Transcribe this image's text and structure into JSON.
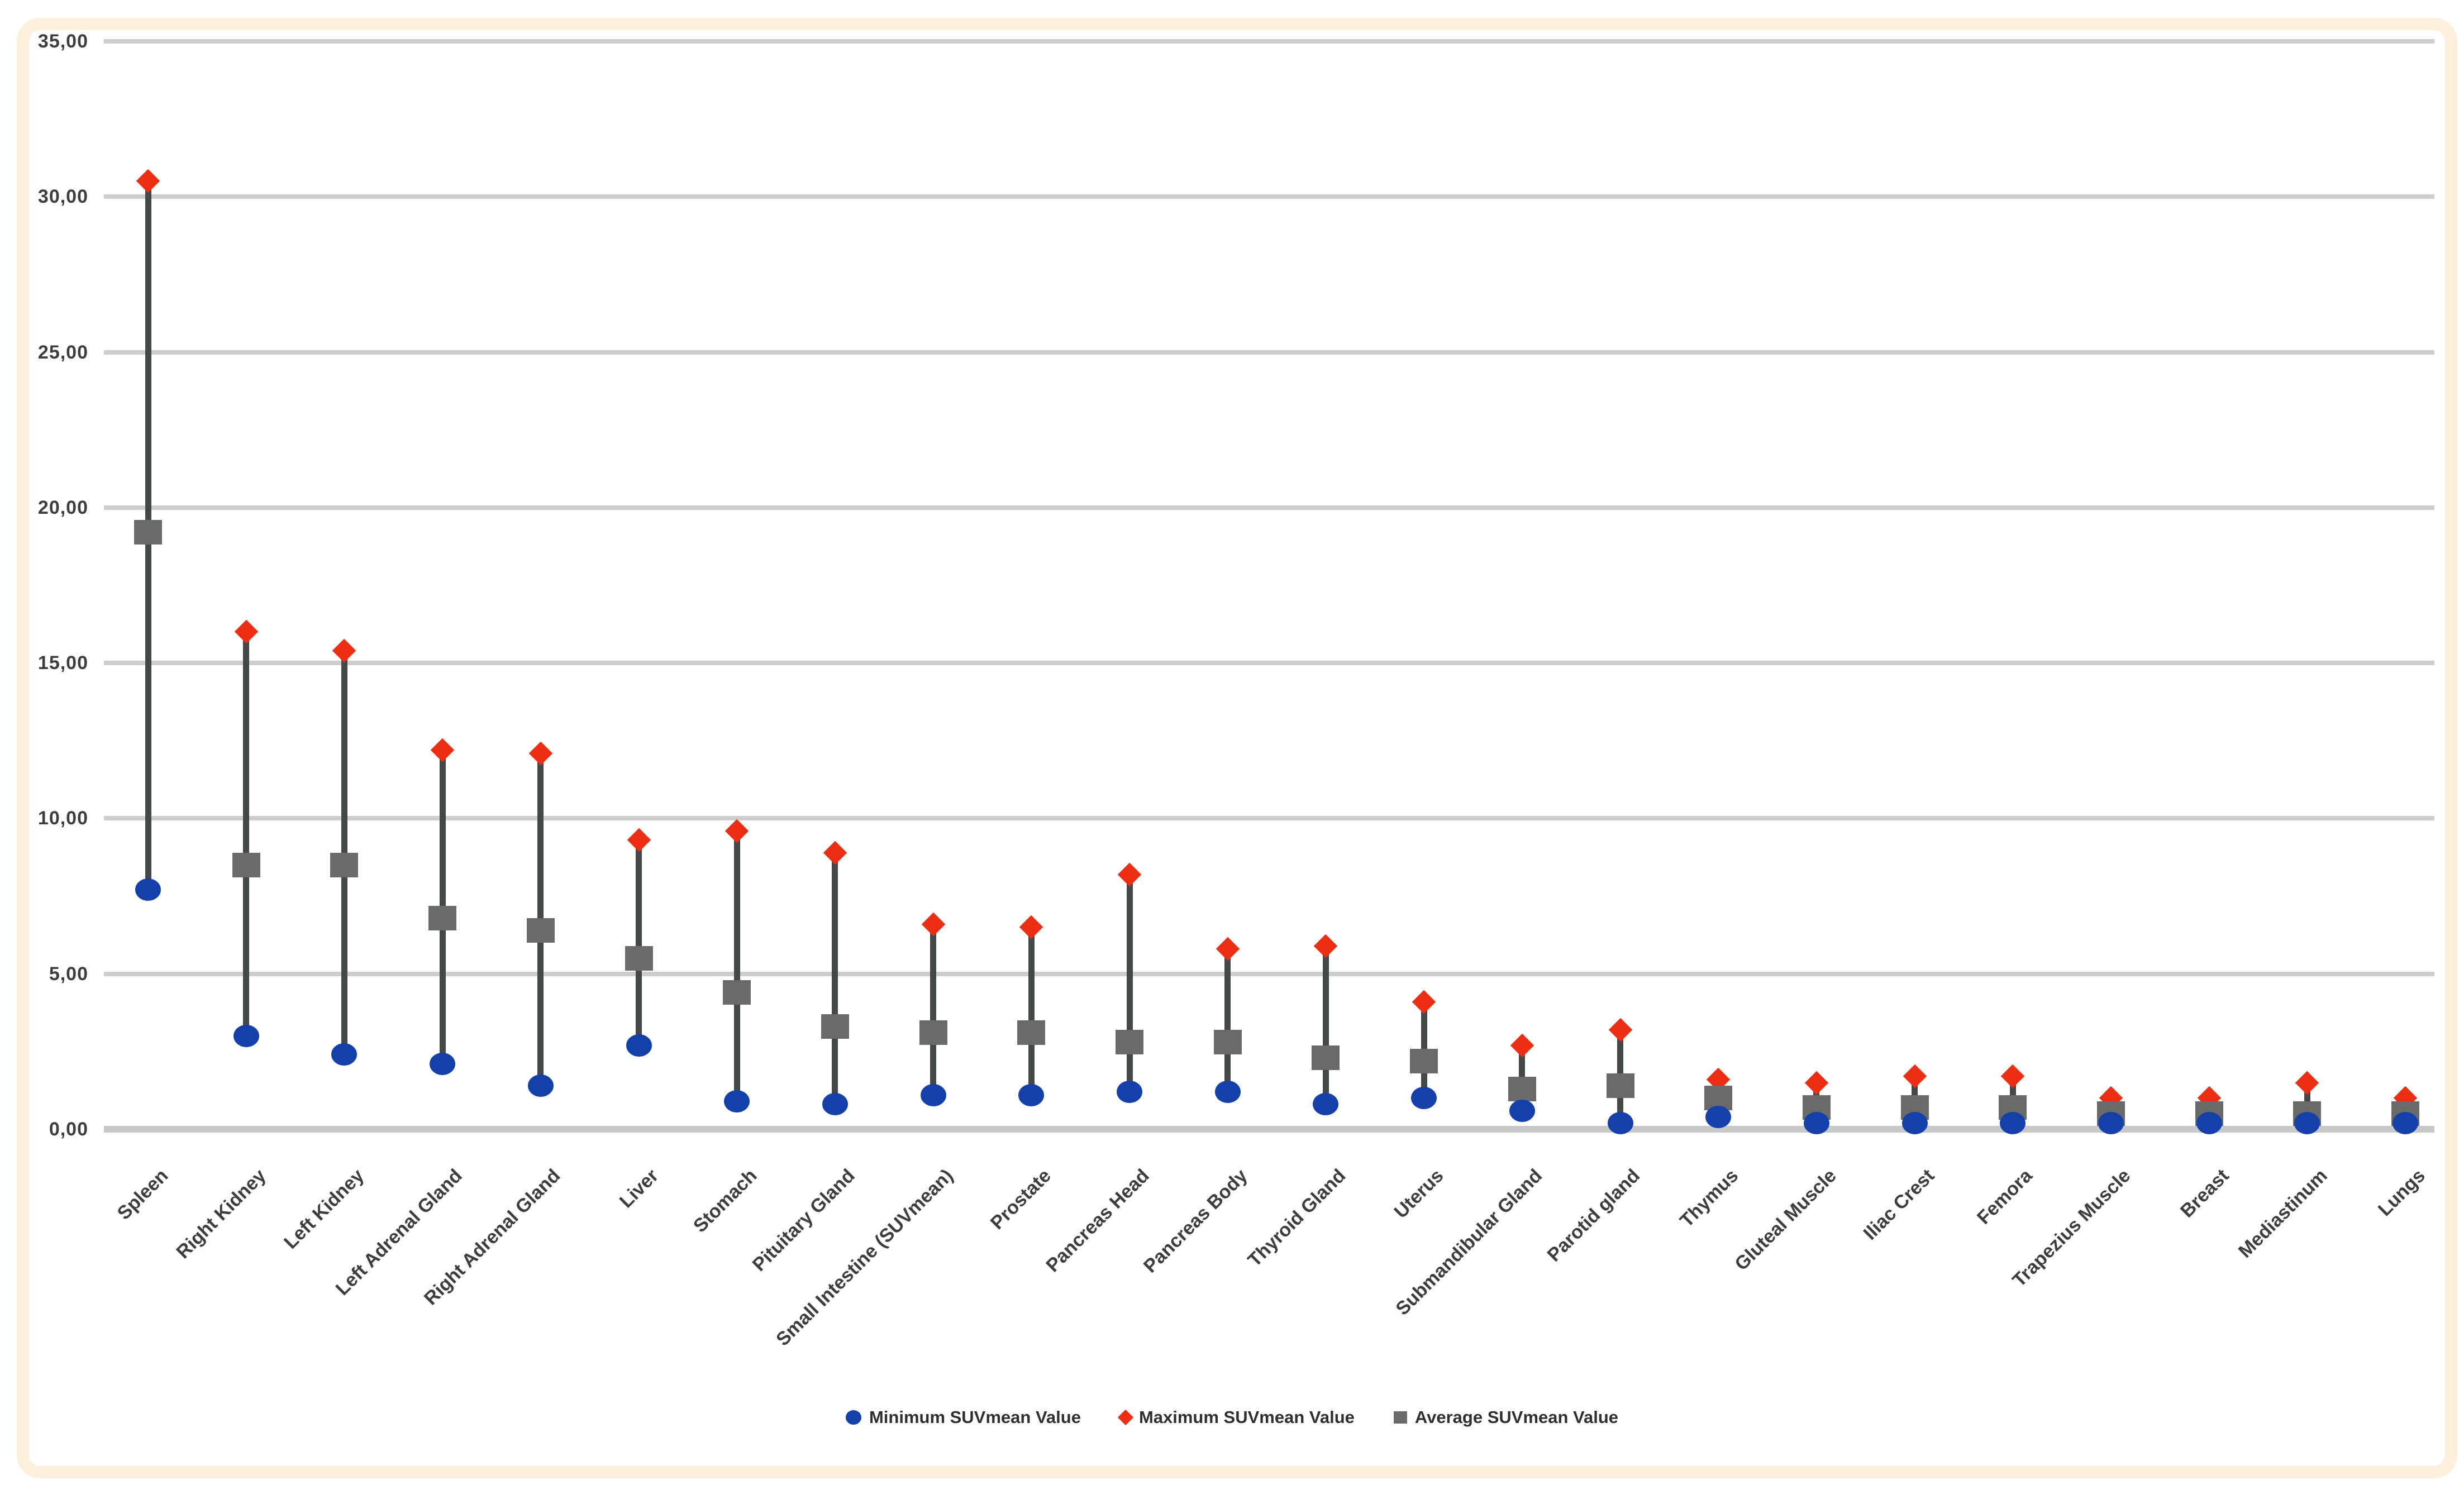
{
  "figure": {
    "background": "#ffffff",
    "frame_color": "#fcefdc"
  },
  "chart_data": {
    "type": "scatter",
    "subtype": "min-max-average high-low lines (stock style)",
    "title": "",
    "xlabel": "",
    "ylabel": "",
    "ylim": [
      0,
      35
    ],
    "grid": "horizontal",
    "decimal_style": "comma",
    "legend_position": "bottom-center",
    "y_ticks": [
      {
        "value": 35,
        "label": "35,00"
      },
      {
        "value": 30,
        "label": "30,00"
      },
      {
        "value": 25,
        "label": "25,00"
      },
      {
        "value": 20,
        "label": "20,00"
      },
      {
        "value": 15,
        "label": "15,00"
      },
      {
        "value": 10,
        "label": "10,00"
      },
      {
        "value": 5,
        "label": "5,00"
      },
      {
        "value": 0,
        "label": "0,00"
      }
    ],
    "categories": [
      "Spleen",
      "Right Kidney",
      "Left Kidney",
      "Left Adrenal Gland",
      "Right Adrenal Gland",
      "Liver",
      "Stomach",
      "Pituitary Gland",
      "Small Intestine (SUVmean)",
      "Prostate",
      "Pancreas Head",
      "Pancreas Body",
      "Thyroid Gland",
      "Uterus",
      "Submandibular Gland",
      "Parotid gland",
      "Thymus",
      "Gluteal Muscle",
      "Iliac Crest",
      "Femora",
      "Trapezius Muscle",
      "Breast",
      "Mediastinum",
      "Lungs"
    ],
    "series": [
      {
        "name": "Minimum SUVmean Value",
        "marker": "circle",
        "color": "#1440ab",
        "values": [
          7.7,
          3.0,
          2.4,
          2.1,
          1.4,
          2.7,
          0.9,
          0.8,
          1.1,
          1.1,
          1.2,
          1.2,
          0.8,
          1.0,
          0.6,
          0.2,
          0.4,
          0.2,
          0.2,
          0.2,
          0.2,
          0.2,
          0.2,
          0.2
        ]
      },
      {
        "name": "Maximum SUVmean Value",
        "marker": "diamond",
        "color": "#ee2e12",
        "values": [
          30.5,
          16.0,
          15.4,
          12.2,
          12.1,
          9.3,
          9.6,
          8.9,
          6.6,
          6.5,
          8.2,
          5.8,
          5.9,
          4.1,
          2.7,
          3.2,
          1.6,
          1.5,
          1.7,
          1.7,
          1.0,
          1.0,
          1.5,
          1.0
        ]
      },
      {
        "name": "Average SUVmean Value",
        "marker": "square",
        "color": "#6a6a6a",
        "values": [
          19.2,
          8.5,
          8.5,
          6.8,
          6.4,
          5.5,
          4.4,
          3.3,
          3.1,
          3.1,
          2.8,
          2.8,
          2.3,
          2.2,
          1.3,
          1.4,
          1.0,
          0.7,
          0.7,
          0.7,
          0.5,
          0.5,
          0.5,
          0.5
        ]
      }
    ],
    "colors": {
      "connector_line": "#454849",
      "gridline": "#cbcecd",
      "axis_line": "#c6c9c8",
      "tick_label": "#3d3d3d",
      "category_label": "#3d3d3d",
      "legend_text": "#2f2f2f",
      "frame": "#fcefdc",
      "background": "#ffffff"
    }
  }
}
